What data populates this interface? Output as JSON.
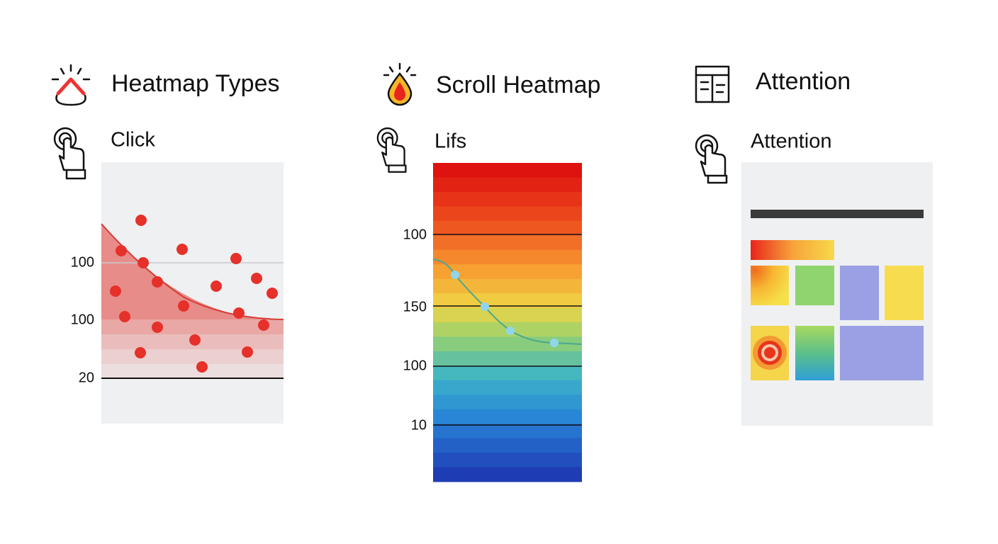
{
  "panels": [
    {
      "title": "Heatmap Types",
      "subtitle": "Click",
      "labels": [
        "100",
        "100",
        "20"
      ]
    },
    {
      "title": "Scroll Heatmap",
      "subtitle": "Lifs",
      "labels": [
        "100",
        "150",
        "100",
        "10"
      ]
    },
    {
      "title": "Attention",
      "subtitle": "Attention"
    }
  ]
}
